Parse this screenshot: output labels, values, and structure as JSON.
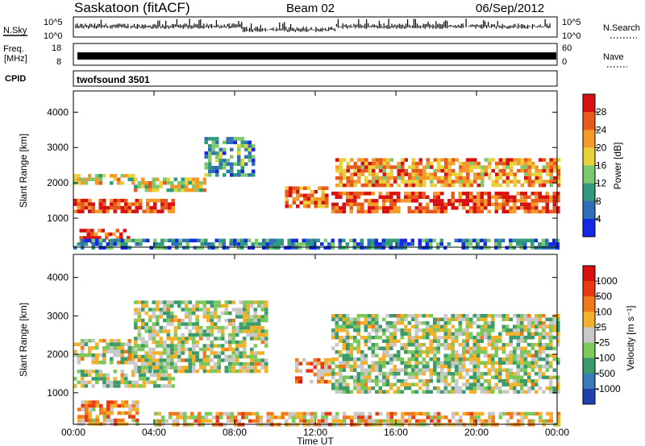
{
  "header": {
    "station": "Saskatoon (fitACF)",
    "beam": "Beam 02",
    "date": "06/Sep/2012"
  },
  "noise_panel": {
    "left_label": "N.Sky",
    "left_ticks": [
      "10^5",
      "10^0"
    ],
    "right_label": "N.Search",
    "right_ticks": [
      "10^5",
      "10^0"
    ]
  },
  "freq_panel": {
    "left_label_1": "Freq.",
    "left_label_2": "[MHz]",
    "left_ticks": [
      "18",
      "8"
    ],
    "right_label": "Nave",
    "right_ticks": [
      "60",
      "0"
    ]
  },
  "cpid": {
    "label": "CPID",
    "value": "twofsound 3501"
  },
  "chart_data": [
    {
      "type": "heatmap",
      "name": "power",
      "ylabel": "Slant Range [km]",
      "ylim": [
        180,
        4600
      ],
      "yticks": [
        "1000",
        "2000",
        "3000",
        "4000"
      ],
      "colorbar": {
        "label": "Power [dB]",
        "ticks": [
          "4",
          "8",
          "12",
          "16",
          "20",
          "24",
          "28"
        ],
        "colors": [
          "#1428e6",
          "#2f6fb8",
          "#2f9a7c",
          "#7ec870",
          "#e8d23c",
          "#f39a2a",
          "#e85a1a",
          "#d81010"
        ]
      },
      "bands": [
        {
          "t": [
            0.0,
            5.0
          ],
          "r": [
            1150,
            1550
          ],
          "level": 0.85
        },
        {
          "t": [
            0.0,
            3.0
          ],
          "r": [
            1950,
            2250
          ],
          "level": 0.55
        },
        {
          "t": [
            0.3,
            2.8
          ],
          "r": [
            380,
            700
          ],
          "level": 0.9
        },
        {
          "t": [
            3.0,
            6.5
          ],
          "r": [
            1750,
            2150
          ],
          "level": 0.55
        },
        {
          "t": [
            6.5,
            9.0
          ],
          "r": [
            2200,
            3300
          ],
          "level": 0.3
        },
        {
          "t": [
            10.5,
            12.5
          ],
          "r": [
            1350,
            1900
          ],
          "level": 0.75
        },
        {
          "t": [
            12.8,
            24.0
          ],
          "r": [
            1150,
            1750
          ],
          "level": 0.85
        },
        {
          "t": [
            13.0,
            24.0
          ],
          "r": [
            1950,
            2700
          ],
          "level": 0.7
        },
        {
          "t": [
            0.0,
            24.0
          ],
          "r": [
            200,
            420
          ],
          "level": 0.25
        }
      ]
    },
    {
      "type": "heatmap",
      "name": "velocity",
      "ylabel": "Slant Range [km]",
      "xlabel": "Time UT",
      "xticks": [
        "00:00",
        "04:00",
        "08:00",
        "12:00",
        "16:00",
        "20:00",
        "00:00"
      ],
      "ylim": [
        180,
        4600
      ],
      "yticks": [
        "1000",
        "2000",
        "3000",
        "4000"
      ],
      "colorbar": {
        "label": "Velocity [m s⁻¹]",
        "ticks": [
          "1000",
          "500",
          "100",
          "25",
          "-25",
          "-100",
          "-500",
          "-1000"
        ],
        "colors": [
          "#2040b0",
          "#3a7ab8",
          "#3d9a6a",
          "#7dc85a",
          "#c8c8c8",
          "#f3b02a",
          "#f07a1a",
          "#e83a12",
          "#d81010"
        ]
      },
      "bands": [
        {
          "t": [
            0.0,
            5.0
          ],
          "r": [
            1150,
            1600
          ],
          "level": 0.45
        },
        {
          "t": [
            0.0,
            3.0
          ],
          "r": [
            1800,
            2400
          ],
          "level": 0.5
        },
        {
          "t": [
            0.2,
            3.2
          ],
          "r": [
            200,
            800
          ],
          "level": 0.65
        },
        {
          "t": [
            3.0,
            9.5
          ],
          "r": [
            1600,
            3400
          ],
          "level": 0.45
        },
        {
          "t": [
            11.0,
            12.8
          ],
          "r": [
            1300,
            1900
          ],
          "level": 0.68
        },
        {
          "t": [
            12.8,
            24.0
          ],
          "r": [
            1050,
            3050
          ],
          "level": 0.45
        },
        {
          "t": [
            4.0,
            24.0
          ],
          "r": [
            200,
            500
          ],
          "level": 0.6
        }
      ]
    }
  ],
  "xaxis": {
    "label": "Time UT",
    "ticks": [
      "00:00",
      "04:00",
      "08:00",
      "12:00",
      "16:00",
      "20:00",
      "00:00"
    ]
  }
}
